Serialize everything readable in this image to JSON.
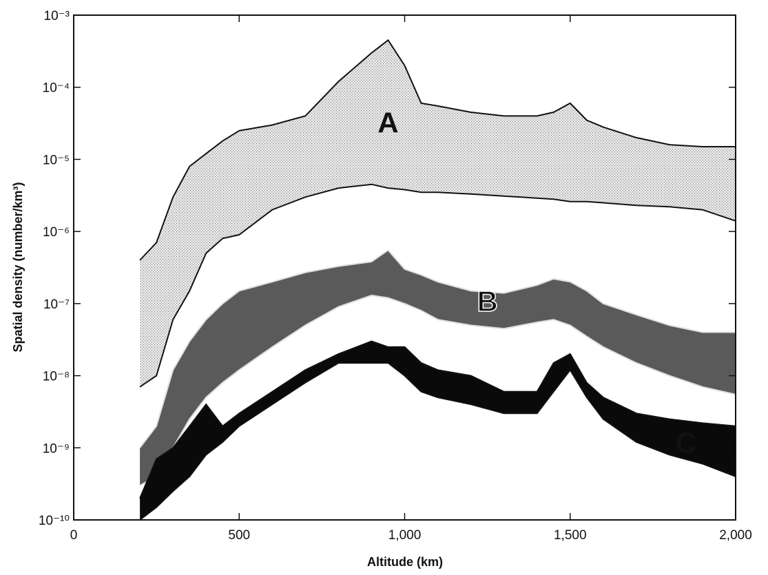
{
  "chart_data": {
    "type": "area",
    "x_label": "Altitude (km)",
    "y_label": "Spatial density (number/km³)",
    "yscale": "log",
    "xlim": [
      0,
      2000
    ],
    "ylim": [
      1e-10,
      0.001
    ],
    "xticks": [
      0,
      500,
      {
        "value": 1000,
        "label": "1,000"
      },
      {
        "value": 1500,
        "label": "1,500"
      },
      {
        "value": 2000,
        "label": "2,000"
      }
    ],
    "yticks": [
      {
        "value": 1e-10,
        "label": "10⁻¹⁰"
      },
      {
        "value": 1e-09,
        "label": "10⁻⁹"
      },
      {
        "value": 1e-08,
        "label": "10⁻⁸"
      },
      {
        "value": 1e-07,
        "label": "10⁻⁷"
      },
      {
        "value": 1e-06,
        "label": "10⁻⁶"
      },
      {
        "value": 1e-05,
        "label": "10⁻⁵"
      },
      {
        "value": 0.0001,
        "label": "10⁻⁴"
      },
      {
        "value": 0.001,
        "label": "10⁻³"
      }
    ],
    "x": [
      200,
      250,
      300,
      350,
      400,
      450,
      500,
      600,
      700,
      800,
      900,
      950,
      1000,
      1050,
      1100,
      1200,
      1300,
      1400,
      1450,
      1500,
      1550,
      1600,
      1700,
      1800,
      1900,
      2000
    ],
    "series": [
      {
        "name": "A",
        "color": "#c4c4c4",
        "upper": [
          4e-07,
          7e-07,
          3e-06,
          8e-06,
          1.2e-05,
          1.8e-05,
          2.5e-05,
          3e-05,
          4e-05,
          0.00012,
          0.0003,
          0.00045,
          0.0002,
          6e-05,
          5.5e-05,
          4.5e-05,
          4e-05,
          4e-05,
          4.5e-05,
          6e-05,
          3.5e-05,
          2.8e-05,
          2e-05,
          1.6e-05,
          1.5e-05,
          1.5e-05
        ],
        "lower": [
          7e-09,
          1e-08,
          6e-08,
          1.5e-07,
          5e-07,
          8e-07,
          9e-07,
          2e-06,
          3e-06,
          4e-06,
          4.5e-06,
          4e-06,
          3.8e-06,
          3.5e-06,
          3.5e-06,
          3.3e-06,
          3.1e-06,
          2.9e-06,
          2.8e-06,
          2.6e-06,
          2.6e-06,
          2.5e-06,
          2.3e-06,
          2.2e-06,
          2e-06,
          1.4e-06
        ]
      },
      {
        "name": "B",
        "color": "#5a5a5a",
        "upper": [
          1e-09,
          2e-09,
          1.2e-08,
          3e-08,
          6e-08,
          1e-07,
          1.5e-07,
          2e-07,
          2.7e-07,
          3.3e-07,
          3.8e-07,
          5.5e-07,
          3e-07,
          2.5e-07,
          2e-07,
          1.5e-07,
          1.4e-07,
          1.8e-07,
          2.2e-07,
          2e-07,
          1.5e-07,
          1e-07,
          7e-08,
          5e-08,
          4e-08,
          4e-08
        ],
        "lower": [
          3e-10,
          4e-10,
          1e-09,
          2.5e-09,
          5e-09,
          8e-09,
          1.2e-08,
          2.5e-08,
          5e-08,
          9e-08,
          1.3e-07,
          1.2e-07,
          1e-07,
          8e-08,
          6e-08,
          5e-08,
          4.5e-08,
          5.5e-08,
          6e-08,
          5e-08,
          3.5e-08,
          2.5e-08,
          1.5e-08,
          1e-08,
          7e-09,
          5.5e-09
        ]
      },
      {
        "name": "C",
        "color": "#0a0a0a",
        "upper": [
          2e-10,
          7e-10,
          1e-09,
          2e-09,
          4e-09,
          2e-09,
          3e-09,
          6e-09,
          1.2e-08,
          2e-08,
          3e-08,
          2.5e-08,
          2.5e-08,
          1.5e-08,
          1.2e-08,
          1e-08,
          6e-09,
          6e-09,
          1.5e-08,
          2e-08,
          8e-09,
          5e-09,
          3e-09,
          2.5e-09,
          2.2e-09,
          2e-09
        ],
        "lower": [
          1e-10,
          1.5e-10,
          2.5e-10,
          4e-10,
          8e-10,
          1.2e-09,
          2e-09,
          4e-09,
          8e-09,
          1.5e-08,
          1.5e-08,
          1.5e-08,
          1e-08,
          6e-09,
          5e-09,
          4e-09,
          3e-09,
          3e-09,
          6e-09,
          1.2e-08,
          5e-09,
          2.5e-09,
          1.2e-09,
          8e-10,
          6e-10,
          4e-10
        ]
      }
    ]
  }
}
